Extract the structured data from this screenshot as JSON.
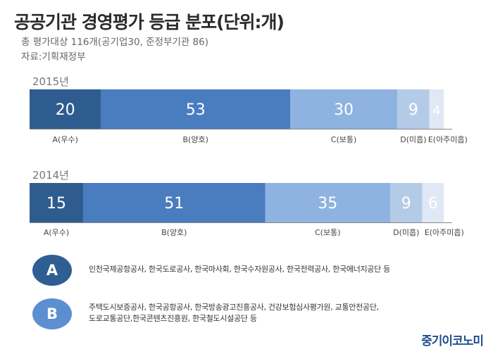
{
  "header": {
    "title": "공공기관 경영평가 등급 분포(단위:개)",
    "subtitle_line1": "총 평가대상 116개(공기업30, 준정부기관 86)",
    "subtitle_line2": "자료:기획재정부"
  },
  "chart_data": {
    "type": "bar",
    "orientation": "horizontal-stacked",
    "title": "공공기관 경영평가 등급 분포(단위:개)",
    "categories": [
      "A(우수)",
      "B(양호)",
      "C(보통)",
      "D(미흡)",
      "E(아주미흡)"
    ],
    "series": [
      {
        "name": "2015년",
        "values": [
          20,
          53,
          30,
          9,
          4
        ]
      },
      {
        "name": "2014년",
        "values": [
          15,
          51,
          35,
          9,
          6
        ]
      }
    ],
    "colors": [
      "#2f5c8f",
      "#4a7cc0",
      "#8eb3e0",
      "#b4cbe8",
      "#dfe8f4"
    ],
    "label_colors": [
      "#ffffff",
      "#ffffff",
      "#ffffff",
      "#ffffff",
      "#ffffff"
    ]
  },
  "legend": {
    "a": {
      "badge": "A",
      "lines": [
        "인천국제공항공사, 한국도로공사, 한국마사회, 한국수자원공사, 한국전력공사, 한국에너지공단 등"
      ]
    },
    "b": {
      "badge": "B",
      "lines": [
        "주택도시보증공사, 한국공항공사, 한국방송광고진흥공사, 건강보험심사평가원, 교통안전공단,",
        "도로교통공단,한국콘텐츠진흥원, 한국철도시설공단 등"
      ]
    }
  },
  "brand": "중기이코노미"
}
